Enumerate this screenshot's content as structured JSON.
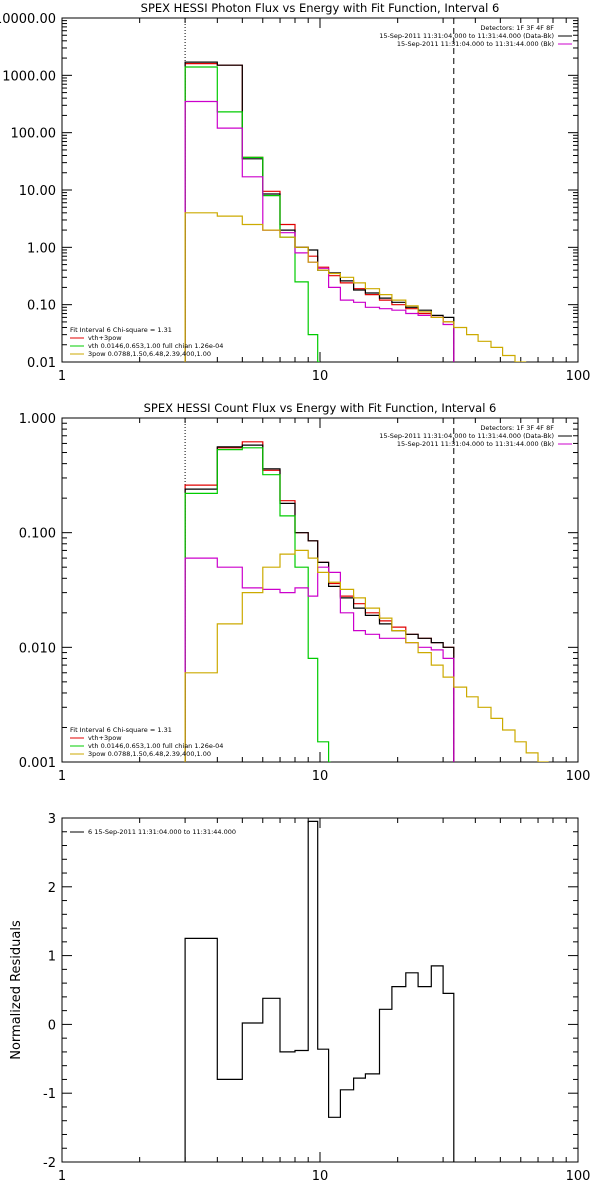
{
  "chart_data": [
    {
      "type": "line",
      "title": "SPEX HESSI Photon Flux vs Energy with Fit Function, Interval 6",
      "xlim": [
        1,
        100
      ],
      "ylim": [
        0.01,
        10000
      ],
      "xscale": "log",
      "yscale": "log",
      "x_ticks": [
        "1",
        "10",
        "100"
      ],
      "y_ticks": [
        "10000.00",
        "1000.00",
        "100.00",
        "10.00",
        "1.00",
        "0.10",
        "0.01"
      ],
      "ylabel": "",
      "xlabel": "",
      "vlines": [
        {
          "x": 3.0,
          "style": "dotted"
        },
        {
          "x": 33.0,
          "style": "dashed"
        }
      ],
      "top_legend": [
        {
          "text": "Detectors: 1F 3F 4F 8F",
          "color": "#000000"
        },
        {
          "text": "15-Sep-2011 11:31:04.000 to 11:31:44.000 (Data-Bk)",
          "color": "#000000"
        },
        {
          "text": "15-Sep-2011 11:31:04.000 to 11:31:44.000 (Bk)",
          "color": "#cc00cc"
        }
      ],
      "bottom_legend": [
        {
          "text": "Fit Interval 6   Chi-square = 1.31",
          "color": "#000000"
        },
        {
          "text": "vth+3pow",
          "color": "#e00000"
        },
        {
          "text": "vth 0.0146,0.653,1.00  full chian 1.26e-04",
          "color": "#00cc00"
        },
        {
          "text": "3pow 0.0788,1.50,6.48,2.39,400,1.00",
          "color": "#ccaa00"
        }
      ],
      "series": [
        {
          "color": "#e00000",
          "values": [
            [
              3,
              1600
            ],
            [
              4,
              1500
            ],
            [
              5,
              37
            ],
            [
              6,
              9.5
            ],
            [
              7,
              2.5
            ],
            [
              8,
              1.0
            ],
            [
              9,
              0.7
            ],
            [
              9.8,
              0.45
            ],
            [
              10.8,
              0.32
            ],
            [
              12,
              0.24
            ],
            [
              13.5,
              0.19
            ],
            [
              15,
              0.15
            ],
            [
              17,
              0.12
            ],
            [
              19,
              0.1
            ],
            [
              21.5,
              0.085
            ],
            [
              24,
              0.07
            ],
            [
              27,
              0.06
            ],
            [
              30,
              0.05
            ],
            [
              33,
              0.05
            ]
          ],
          "x_end": 33
        },
        {
          "color": "#000000",
          "values": [
            [
              3,
              1700
            ],
            [
              4,
              1500
            ],
            [
              5,
              35
            ],
            [
              6,
              8.5
            ],
            [
              7,
              2.0
            ],
            [
              8,
              1.0
            ],
            [
              9,
              0.9
            ],
            [
              9.8,
              0.4
            ],
            [
              10.8,
              0.36
            ],
            [
              12,
              0.26
            ],
            [
              13.5,
              0.18
            ],
            [
              15,
              0.16
            ],
            [
              17,
              0.13
            ],
            [
              19,
              0.11
            ],
            [
              21.5,
              0.09
            ],
            [
              24,
              0.08
            ],
            [
              27,
              0.065
            ],
            [
              30,
              0.06
            ],
            [
              33,
              0.06
            ]
          ],
          "x_end": 33
        },
        {
          "color": "#00cc00",
          "values": [
            [
              3,
              1400
            ],
            [
              4,
              230
            ],
            [
              5,
              37
            ],
            [
              6,
              8
            ],
            [
              7,
              1.5
            ],
            [
              8,
              0.25
            ],
            [
              9,
              0.03
            ],
            [
              9.8,
              0.01
            ]
          ],
          "x_end": 10
        },
        {
          "color": "#cc00cc",
          "values": [
            [
              3,
              350
            ],
            [
              4,
              120
            ],
            [
              5,
              17
            ],
            [
              6,
              2.0
            ],
            [
              7,
              1.8
            ],
            [
              8,
              0.8
            ],
            [
              9,
              0.55
            ],
            [
              9.8,
              0.43
            ],
            [
              10.8,
              0.2
            ],
            [
              12,
              0.12
            ],
            [
              13.5,
              0.11
            ],
            [
              15,
              0.09
            ],
            [
              17,
              0.085
            ],
            [
              19,
              0.08
            ],
            [
              21.5,
              0.07
            ],
            [
              24,
              0.065
            ],
            [
              27,
              0.06
            ],
            [
              30,
              0.045
            ],
            [
              33,
              0.011
            ]
          ],
          "x_end": 33
        },
        {
          "color": "#ccaa00",
          "values": [
            [
              3,
              4.0
            ],
            [
              4,
              3.5
            ],
            [
              5,
              2.5
            ],
            [
              6,
              2.0
            ],
            [
              7,
              1.5
            ],
            [
              8,
              1.0
            ],
            [
              9,
              0.55
            ],
            [
              9.8,
              0.4
            ],
            [
              10.8,
              0.35
            ],
            [
              12,
              0.3
            ],
            [
              13.5,
              0.24
            ],
            [
              15,
              0.19
            ],
            [
              17,
              0.15
            ],
            [
              19,
              0.12
            ],
            [
              21.5,
              0.095
            ],
            [
              24,
              0.075
            ],
            [
              27,
              0.06
            ],
            [
              30,
              0.05
            ],
            [
              33,
              0.04
            ],
            [
              37,
              0.03
            ],
            [
              41,
              0.023
            ],
            [
              46,
              0.018
            ],
            [
              51,
              0.013
            ],
            [
              57,
              0.01
            ]
          ],
          "x_end": 63
        }
      ]
    },
    {
      "type": "line",
      "title": "SPEX HESSI Count Flux vs Energy with Fit Function, Interval 6",
      "xlim": [
        1,
        100
      ],
      "ylim": [
        0.001,
        1.0
      ],
      "xscale": "log",
      "yscale": "log",
      "x_ticks": [
        "1",
        "10",
        "100"
      ],
      "y_ticks": [
        "1.000",
        "0.100",
        "0.010",
        "0.001"
      ],
      "ylabel": "",
      "xlabel": "",
      "vlines": [
        {
          "x": 3.0,
          "style": "dotted"
        },
        {
          "x": 33.0,
          "style": "dashed"
        }
      ],
      "top_legend": [
        {
          "text": "Detectors: 1F 3F 4F 8F",
          "color": "#000000"
        },
        {
          "text": "15-Sep-2011 11:31:04.000 to 11:31:44.000 (Data-Bk)",
          "color": "#000000"
        },
        {
          "text": "15-Sep-2011 11:31:04.000 to 11:31:44.000 (Bk)",
          "color": "#cc00cc"
        }
      ],
      "bottom_legend": [
        {
          "text": "Fit Interval 6   Chi-square = 1.31",
          "color": "#000000"
        },
        {
          "text": "vth+3pow",
          "color": "#e00000"
        },
        {
          "text": "vth 0.0146,0.653,1.00  full chian 1.26e-04",
          "color": "#00cc00"
        },
        {
          "text": "3pow 0.0788,1.50,6.48,2.39,400,1.00",
          "color": "#ccaa00"
        }
      ],
      "series": [
        {
          "color": "#e00000",
          "values": [
            [
              3,
              0.26
            ],
            [
              4,
              0.55
            ],
            [
              5,
              0.62
            ],
            [
              6,
              0.35
            ],
            [
              7,
              0.19
            ],
            [
              8,
              0.1
            ],
            [
              9,
              0.085
            ],
            [
              9.8,
              0.055
            ],
            [
              10.8,
              0.036
            ],
            [
              12,
              0.028
            ],
            [
              13.5,
              0.024
            ],
            [
              15,
              0.02
            ],
            [
              17,
              0.017
            ],
            [
              19,
              0.015
            ],
            [
              21.5,
              0.013
            ],
            [
              24,
              0.012
            ],
            [
              27,
              0.011
            ],
            [
              30,
              0.01
            ],
            [
              33,
              0.01
            ]
          ],
          "x_end": 33
        },
        {
          "color": "#000000",
          "values": [
            [
              3,
              0.24
            ],
            [
              4,
              0.56
            ],
            [
              5,
              0.58
            ],
            [
              6,
              0.36
            ],
            [
              7,
              0.18
            ],
            [
              8,
              0.1
            ],
            [
              9,
              0.085
            ],
            [
              9.8,
              0.055
            ],
            [
              10.8,
              0.034
            ],
            [
              12,
              0.027
            ],
            [
              13.5,
              0.022
            ],
            [
              15,
              0.019
            ],
            [
              17,
              0.016
            ],
            [
              19,
              0.014
            ],
            [
              21.5,
              0.013
            ],
            [
              24,
              0.012
            ],
            [
              27,
              0.011
            ],
            [
              30,
              0.01
            ],
            [
              33,
              0.0095
            ]
          ],
          "x_end": 33
        },
        {
          "color": "#00cc00",
          "values": [
            [
              3,
              0.22
            ],
            [
              4,
              0.53
            ],
            [
              5,
              0.55
            ],
            [
              6,
              0.32
            ],
            [
              7,
              0.14
            ],
            [
              8,
              0.05
            ],
            [
              9,
              0.008
            ],
            [
              9.8,
              0.0015
            ],
            [
              10.8,
              0.001
            ]
          ],
          "x_end": 11
        },
        {
          "color": "#cc00cc",
          "values": [
            [
              3,
              0.06
            ],
            [
              4,
              0.05
            ],
            [
              5,
              0.033
            ],
            [
              6,
              0.032
            ],
            [
              7,
              0.03
            ],
            [
              8,
              0.033
            ],
            [
              9,
              0.028
            ],
            [
              9.8,
              0.05
            ],
            [
              10.8,
              0.045
            ],
            [
              12,
              0.02
            ],
            [
              13.5,
              0.014
            ],
            [
              15,
              0.013
            ],
            [
              17,
              0.012
            ],
            [
              19,
              0.012
            ],
            [
              21.5,
              0.011
            ],
            [
              24,
              0.01
            ],
            [
              27,
              0.0095
            ],
            [
              30,
              0.008
            ],
            [
              33,
              0.0012
            ]
          ],
          "x_end": 33
        },
        {
          "color": "#ccaa00",
          "values": [
            [
              3,
              0.006
            ],
            [
              4,
              0.016
            ],
            [
              5,
              0.03
            ],
            [
              6,
              0.05
            ],
            [
              7,
              0.065
            ],
            [
              8,
              0.07
            ],
            [
              9,
              0.06
            ],
            [
              9.8,
              0.045
            ],
            [
              10.8,
              0.037
            ],
            [
              12,
              0.032
            ],
            [
              13.5,
              0.027
            ],
            [
              15,
              0.022
            ],
            [
              17,
              0.018
            ],
            [
              19,
              0.014
            ],
            [
              21.5,
              0.011
            ],
            [
              24,
              0.009
            ],
            [
              27,
              0.007
            ],
            [
              30,
              0.0055
            ],
            [
              33,
              0.0045
            ],
            [
              37,
              0.0037
            ],
            [
              41,
              0.003
            ],
            [
              46,
              0.0024
            ],
            [
              51,
              0.0019
            ],
            [
              57,
              0.0015
            ],
            [
              63,
              0.0012
            ],
            [
              70,
              0.001
            ]
          ],
          "x_end": 77
        }
      ]
    },
    {
      "type": "line",
      "title": "",
      "xlim": [
        1,
        100
      ],
      "ylim": [
        -2,
        3
      ],
      "xscale": "log",
      "yscale": "linear",
      "x_ticks": [
        "1",
        "10",
        "100"
      ],
      "y_ticks": [
        "3",
        "2",
        "1",
        "0",
        "-1",
        "-2"
      ],
      "ylabel": "Normalized Residuals",
      "xlabel": "",
      "legend": [
        {
          "text": "6  15-Sep-2011 11:31:04.000 to 11:31:44.000",
          "color": "#000000"
        }
      ],
      "series": [
        {
          "color": "#000000",
          "values": [
            [
              3,
              1.25
            ],
            [
              4,
              -0.8
            ],
            [
              5,
              0.02
            ],
            [
              6,
              0.38
            ],
            [
              7,
              -0.4
            ],
            [
              8,
              -0.38
            ],
            [
              9,
              2.95
            ],
            [
              9.8,
              -0.36
            ],
            [
              10.8,
              -1.35
            ],
            [
              12,
              -0.95
            ],
            [
              13.5,
              -0.78
            ],
            [
              15,
              -0.72
            ],
            [
              17,
              0.22
            ],
            [
              19,
              0.55
            ],
            [
              21.5,
              0.75
            ],
            [
              24,
              0.55
            ],
            [
              27,
              0.85
            ],
            [
              30,
              0.45
            ],
            [
              33,
              -2
            ]
          ],
          "x_end": 33
        }
      ]
    }
  ]
}
